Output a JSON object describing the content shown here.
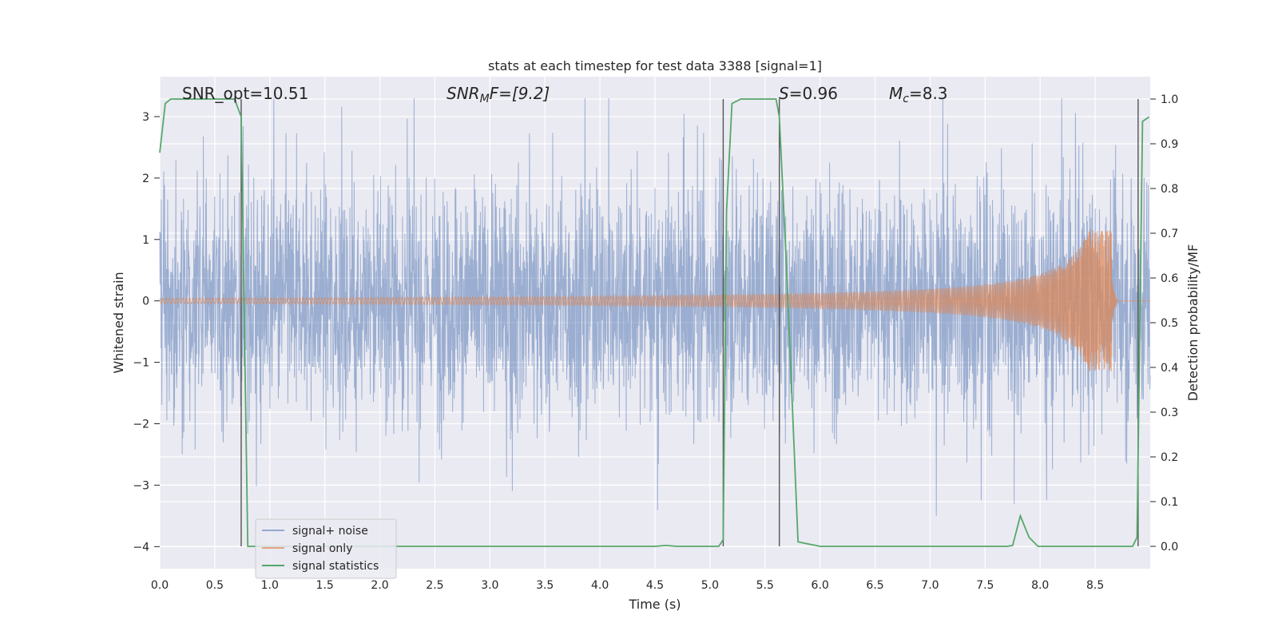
{
  "chart_data": {
    "type": "line",
    "title": "stats at each timestep for test data 3388 [signal=1]",
    "xlabel": "Time (s)",
    "ylabel_left": "Whitened strain",
    "ylabel_right": "Detection probability/MF",
    "xlim": [
      0.0,
      9.0
    ],
    "ylim_left": [
      -4.36,
      3.65
    ],
    "ylim_right": [
      -0.05,
      1.05
    ],
    "x_ticks": [
      "0.0",
      "0.5",
      "1.0",
      "1.5",
      "2.0",
      "2.5",
      "3.0",
      "3.5",
      "4.0",
      "4.5",
      "5.0",
      "5.5",
      "6.0",
      "6.5",
      "7.0",
      "7.5",
      "8.0",
      "8.5"
    ],
    "y_ticks_left": [
      "3",
      "2",
      "1",
      "0",
      "−1",
      "−2",
      "−3",
      "−4"
    ],
    "y_ticks_right": [
      "1.0",
      "0.9",
      "0.8",
      "0.7",
      "0.6",
      "0.5",
      "0.4",
      "0.3",
      "0.2",
      "0.1",
      "0.0"
    ],
    "grid": true,
    "legend_position": "lower-left",
    "annotations": {
      "snr_opt": "SNR_opt=10.51",
      "snr_mf_main": "SNR",
      "snr_mf_sub": "M",
      "snr_mf_rest": "F=[9.2]",
      "s_italic": "S",
      "s_value": "=0.96",
      "mc_main": "M",
      "mc_sub": "c",
      "mc_value": "=8.3"
    },
    "series": [
      {
        "name": "signal+ noise",
        "color": "#4c72b0",
        "style": "dense noise, spikes up to ~3.3 and down to ~-4.0"
      },
      {
        "name": "signal only",
        "color": "#dd8452",
        "style": "chirp growing from 0 to amplitude ~1.1 near t=8.65"
      },
      {
        "name": "signal statistics",
        "color": "#55a868",
        "x": [
          0.0,
          0.05,
          0.1,
          0.3,
          0.5,
          0.68,
          0.74,
          0.8,
          1.0,
          2.0,
          3.0,
          4.0,
          4.5,
          4.6,
          4.7,
          5.0,
          5.08,
          5.12,
          5.15,
          5.2,
          5.28,
          5.6,
          5.63,
          5.7,
          5.8,
          6.0,
          7.0,
          7.7,
          7.75,
          7.82,
          7.9,
          7.98,
          8.5,
          8.84,
          8.88,
          8.93,
          8.99
        ],
        "y": [
          0.88,
          0.99,
          1.0,
          1.0,
          1.0,
          1.0,
          0.96,
          0.0,
          0.0,
          0.0,
          0.0,
          0.0,
          0.0,
          0.002,
          0.0,
          0.0,
          0.0,
          0.015,
          0.75,
          0.99,
          1.0,
          1.0,
          0.96,
          0.6,
          0.01,
          0.0,
          0.0,
          0.0,
          0.002,
          0.068,
          0.02,
          0.0,
          0.0,
          0.0,
          0.02,
          0.95,
          0.96
        ]
      }
    ],
    "vlines": [
      0.74,
      5.12,
      5.63,
      8.89
    ]
  }
}
